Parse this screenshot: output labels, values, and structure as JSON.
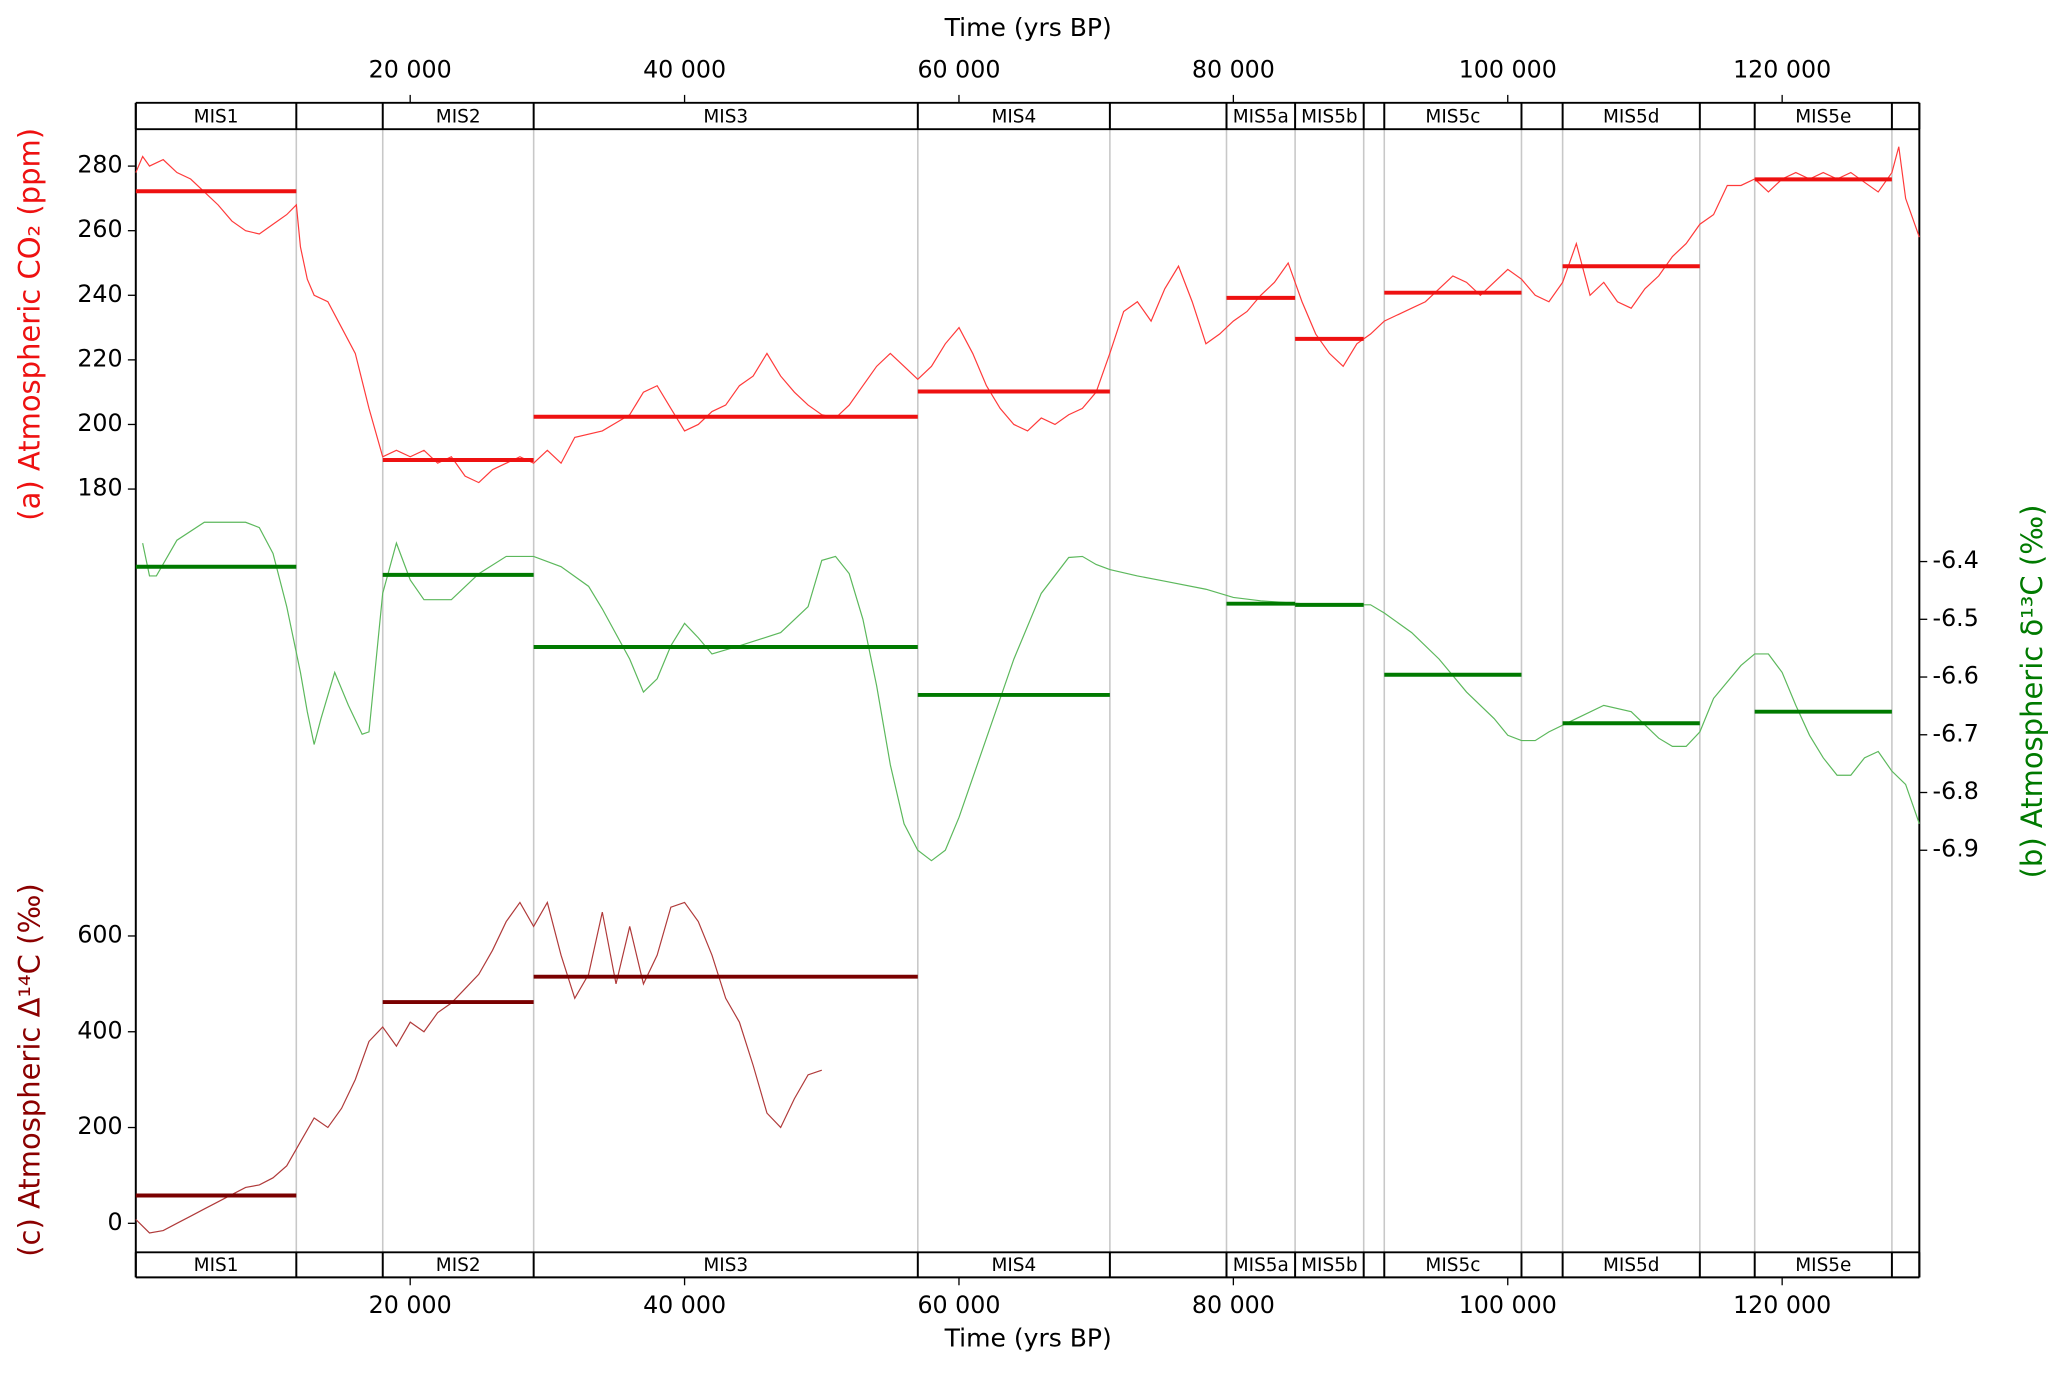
{
  "shared": {
    "xlabel": "Time (yrs BP)",
    "xlim": [
      0,
      130000
    ],
    "xticks": [
      {
        "value": 20000,
        "label": "20 000"
      },
      {
        "value": 40000,
        "label": "40 000"
      },
      {
        "value": 60000,
        "label": "60 000"
      },
      {
        "value": 80000,
        "label": "80 000"
      },
      {
        "value": 100000,
        "label": "100 000"
      },
      {
        "value": 120000,
        "label": "120 000"
      }
    ],
    "stage_names": [
      "MIS1",
      null,
      "MIS2",
      "MIS3",
      "MIS4",
      null,
      "MIS5a",
      "MIS5b",
      null,
      "MIS5c",
      null,
      "MIS5d",
      null,
      "MIS5e",
      null
    ],
    "stage_bounds": [
      0,
      11700,
      18000,
      29000,
      57000,
      71000,
      79500,
      84500,
      89500,
      91000,
      101000,
      104000,
      114000,
      118000,
      128000,
      130000
    ]
  },
  "chart_data": [
    {
      "type": "line",
      "ylabel": "(a) Atmospheric CO₂ (ppm)",
      "axis_side": "left",
      "color": "#ff3a3a",
      "mean_color": "#ee1111",
      "label_color": "#ee1111",
      "ylim": [
        170,
        292
      ],
      "yticks": [
        180,
        200,
        220,
        240,
        260,
        280
      ],
      "x": [
        0,
        500,
        1000,
        2000,
        3000,
        4000,
        5000,
        6000,
        7000,
        8000,
        9000,
        10000,
        11000,
        11700,
        12000,
        12500,
        13000,
        14000,
        15000,
        16000,
        17000,
        18000,
        19000,
        20000,
        21000,
        22000,
        23000,
        24000,
        25000,
        26000,
        27000,
        28000,
        29000,
        30000,
        31000,
        32000,
        34000,
        36000,
        37000,
        38000,
        39000,
        40000,
        41000,
        42000,
        43000,
        44000,
        45000,
        46000,
        47000,
        48000,
        49000,
        50000,
        51000,
        52000,
        53000,
        54000,
        55000,
        56000,
        57000,
        58000,
        59000,
        60000,
        61000,
        62000,
        63000,
        64000,
        65000,
        66000,
        67000,
        68000,
        69000,
        70000,
        71000,
        72000,
        73000,
        74000,
        75000,
        76000,
        77000,
        78000,
        79000,
        80000,
        81000,
        82000,
        83000,
        84000,
        85000,
        86000,
        87000,
        88000,
        89000,
        90000,
        91000,
        92000,
        93000,
        94000,
        95000,
        96000,
        97000,
        98000,
        99000,
        100000,
        101000,
        102000,
        103000,
        104000,
        105000,
        106000,
        107000,
        108000,
        109000,
        110000,
        111000,
        112000,
        113000,
        114000,
        115000,
        116000,
        117000,
        118000,
        119000,
        120000,
        121000,
        122000,
        123000,
        124000,
        125000,
        126000,
        127000,
        128000,
        128500,
        129000,
        130000
      ],
      "values": [
        278,
        283,
        280,
        282,
        278,
        276,
        272,
        268,
        263,
        260,
        259,
        262,
        265,
        268,
        255,
        245,
        240,
        238,
        230,
        222,
        205,
        190,
        192,
        190,
        192,
        188,
        190,
        184,
        182,
        186,
        188,
        190,
        188,
        192,
        188,
        196,
        198,
        203,
        210,
        212,
        205,
        198,
        200,
        204,
        206,
        212,
        215,
        222,
        215,
        210,
        206,
        203,
        202,
        206,
        212,
        218,
        222,
        218,
        214,
        218,
        225,
        230,
        222,
        212,
        205,
        200,
        198,
        202,
        200,
        203,
        205,
        210,
        222,
        235,
        238,
        232,
        242,
        249,
        238,
        225,
        228,
        232,
        235,
        240,
        244,
        250,
        238,
        228,
        222,
        218,
        225,
        228,
        232,
        234,
        236,
        238,
        242,
        246,
        244,
        240,
        244,
        248,
        245,
        240,
        238,
        244,
        256,
        240,
        244,
        238,
        236,
        242,
        246,
        252,
        256,
        262,
        265,
        274,
        274,
        276,
        272,
        276,
        278,
        276,
        278,
        276,
        278,
        275,
        272,
        278,
        286,
        270,
        258
      ],
      "stage_means": [
        272.2,
        null,
        189,
        202.4,
        210.2,
        null,
        239.2,
        226.5,
        null,
        240.8,
        null,
        249,
        null,
        275.9,
        null
      ]
    },
    {
      "type": "line",
      "ylabel": "(b) Atmospheric δ¹³C (‰)",
      "axis_side": "right",
      "color": "#5cb85c",
      "mean_color": "#007a00",
      "label_color": "#007a00",
      "ylim": [
        -6.95,
        -6.3
      ],
      "yticks": [
        -6.4,
        -6.5,
        -6.6,
        -6.7,
        -6.8,
        -6.9
      ],
      "x": [
        500,
        1000,
        1500,
        3000,
        5000,
        8000,
        9000,
        10000,
        11000,
        12000,
        12500,
        13000,
        13500,
        14500,
        15500,
        16500,
        17000,
        18000,
        19000,
        20000,
        21000,
        23000,
        25000,
        27000,
        29000,
        31000,
        33000,
        34000,
        36000,
        37000,
        38000,
        39000,
        40000,
        41000,
        42000,
        44000,
        47000,
        49000,
        50000,
        51000,
        52000,
        53000,
        54000,
        55000,
        56000,
        57000,
        58000,
        59000,
        60000,
        62000,
        64000,
        66000,
        68000,
        69000,
        70000,
        71000,
        73000,
        75000,
        78000,
        80000,
        82000,
        85000,
        88000,
        90000,
        91000,
        93000,
        95000,
        97000,
        99000,
        100000,
        101000,
        102000,
        103000,
        105000,
        107000,
        109000,
        111000,
        112000,
        113000,
        114000,
        115000,
        117000,
        118000,
        119000,
        120000,
        121000,
        122000,
        123000,
        124000,
        125000,
        126000,
        127000,
        128000,
        129000,
        130000
      ],
      "values": [
        -6.368,
        -6.425,
        -6.425,
        -6.363,
        -6.332,
        -6.332,
        -6.341,
        -6.386,
        -6.478,
        -6.592,
        -6.66,
        -6.717,
        -6.672,
        -6.592,
        -6.649,
        -6.699,
        -6.695,
        -6.455,
        -6.368,
        -6.432,
        -6.466,
        -6.466,
        -6.421,
        -6.391,
        -6.391,
        -6.409,
        -6.443,
        -6.482,
        -6.569,
        -6.626,
        -6.603,
        -6.546,
        -6.507,
        -6.532,
        -6.56,
        -6.546,
        -6.523,
        -6.478,
        -6.398,
        -6.391,
        -6.421,
        -6.5,
        -6.615,
        -6.752,
        -6.854,
        -6.9,
        -6.918,
        -6.9,
        -6.843,
        -6.706,
        -6.569,
        -6.455,
        -6.393,
        -6.391,
        -6.405,
        -6.414,
        -6.425,
        -6.434,
        -6.448,
        -6.462,
        -6.468,
        -6.473,
        -6.475,
        -6.475,
        -6.489,
        -6.523,
        -6.569,
        -6.626,
        -6.672,
        -6.701,
        -6.71,
        -6.71,
        -6.695,
        -6.672,
        -6.649,
        -6.66,
        -6.706,
        -6.72,
        -6.72,
        -6.695,
        -6.637,
        -6.58,
        -6.56,
        -6.56,
        -6.592,
        -6.649,
        -6.701,
        -6.74,
        -6.77,
        -6.77,
        -6.74,
        -6.729,
        -6.763,
        -6.786,
        -6.854
      ],
      "stage_means": [
        -6.409,
        null,
        -6.423,
        -6.548,
        -6.631,
        null,
        -6.473,
        -6.475,
        null,
        -6.596,
        null,
        -6.68,
        null,
        -6.66,
        null
      ]
    },
    {
      "type": "line",
      "ylabel": "(c) Atmospheric Δ¹⁴C (‰)",
      "axis_side": "left",
      "color": "#b03a3a",
      "mean_color": "#7a0000",
      "label_color": "#8b0000",
      "ylim": [
        -60,
        700
      ],
      "yticks": [
        0,
        200,
        400,
        600
      ],
      "x": [
        0,
        1000,
        2000,
        3000,
        4000,
        5000,
        6000,
        7000,
        8000,
        9000,
        10000,
        11000,
        12000,
        13000,
        14000,
        15000,
        16000,
        17000,
        18000,
        19000,
        20000,
        21000,
        22000,
        23000,
        24000,
        25000,
        26000,
        27000,
        28000,
        29000,
        30000,
        31000,
        32000,
        33000,
        34000,
        35000,
        36000,
        37000,
        38000,
        39000,
        40000,
        41000,
        42000,
        43000,
        44000,
        45000,
        46000,
        47000,
        48000,
        49000,
        50000
      ],
      "values": [
        8,
        -20,
        -15,
        0,
        15,
        30,
        45,
        60,
        75,
        80,
        95,
        120,
        170,
        220,
        200,
        240,
        300,
        380,
        410,
        370,
        420,
        400,
        440,
        460,
        490,
        520,
        570,
        630,
        670,
        620,
        670,
        560,
        470,
        520,
        650,
        500,
        620,
        500,
        560,
        660,
        670,
        630,
        560,
        470,
        420,
        330,
        230,
        200,
        260,
        310,
        320
      ],
      "stage_means": [
        58,
        null,
        462,
        515,
        null,
        null,
        null,
        null,
        null,
        null,
        null,
        null,
        null,
        null,
        null
      ]
    }
  ]
}
